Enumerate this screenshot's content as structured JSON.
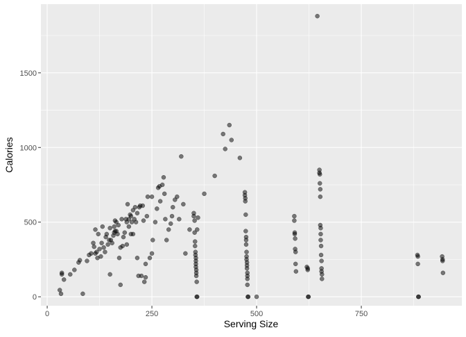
{
  "chart_data": {
    "type": "scatter",
    "xlabel": "Serving Size",
    "ylabel": "Calories",
    "xlim": [
      -15,
      990
    ],
    "ylim": [
      -60,
      1960
    ],
    "x_ticks": [
      0,
      250,
      500,
      750
    ],
    "x_tick_labels": [
      "0",
      "250",
      "500",
      "750"
    ],
    "x_minor": [
      125,
      375,
      625,
      875
    ],
    "y_ticks": [
      0,
      500,
      1000,
      1500
    ],
    "y_tick_labels": [
      "0",
      "500",
      "1000",
      "1500"
    ],
    "y_minor": [
      250,
      750,
      1250,
      1750
    ],
    "grid": true,
    "point_color": "#000000",
    "panel_color": "#ebebeb",
    "points": [
      [
        30,
        45
      ],
      [
        33,
        20
      ],
      [
        35,
        150
      ],
      [
        35,
        160
      ],
      [
        40,
        115
      ],
      [
        55,
        150
      ],
      [
        65,
        180
      ],
      [
        75,
        230
      ],
      [
        78,
        245
      ],
      [
        85,
        20
      ],
      [
        95,
        240
      ],
      [
        100,
        280
      ],
      [
        105,
        290
      ],
      [
        110,
        360
      ],
      [
        112,
        335
      ],
      [
        115,
        450
      ],
      [
        115,
        290
      ],
      [
        118,
        300
      ],
      [
        120,
        260
      ],
      [
        122,
        420
      ],
      [
        125,
        320
      ],
      [
        128,
        270
      ],
      [
        130,
        360
      ],
      [
        132,
        470
      ],
      [
        135,
        330
      ],
      [
        138,
        300
      ],
      [
        140,
        400
      ],
      [
        142,
        420
      ],
      [
        145,
        350
      ],
      [
        148,
        380
      ],
      [
        150,
        150
      ],
      [
        150,
        460
      ],
      [
        152,
        380
      ],
      [
        155,
        360
      ],
      [
        158,
        410
      ],
      [
        160,
        430
      ],
      [
        160,
        470
      ],
      [
        162,
        440
      ],
      [
        162,
        510
      ],
      [
        165,
        440
      ],
      [
        165,
        500
      ],
      [
        168,
        420
      ],
      [
        170,
        480
      ],
      [
        172,
        260
      ],
      [
        175,
        330
      ],
      [
        175,
        80
      ],
      [
        178,
        520
      ],
      [
        180,
        340
      ],
      [
        182,
        400
      ],
      [
        185,
        430
      ],
      [
        188,
        520
      ],
      [
        190,
        500
      ],
      [
        190,
        350
      ],
      [
        192,
        620
      ],
      [
        195,
        470
      ],
      [
        195,
        520
      ],
      [
        198,
        550
      ],
      [
        200,
        540
      ],
      [
        200,
        420
      ],
      [
        202,
        500
      ],
      [
        205,
        420
      ],
      [
        205,
        580
      ],
      [
        208,
        520
      ],
      [
        210,
        600
      ],
      [
        212,
        500
      ],
      [
        215,
        560
      ],
      [
        215,
        260
      ],
      [
        218,
        140
      ],
      [
        220,
        600
      ],
      [
        222,
        610
      ],
      [
        225,
        140
      ],
      [
        228,
        610
      ],
      [
        230,
        510
      ],
      [
        232,
        100
      ],
      [
        235,
        130
      ],
      [
        235,
        220
      ],
      [
        238,
        540
      ],
      [
        240,
        670
      ],
      [
        245,
        260
      ],
      [
        250,
        290
      ],
      [
        250,
        670
      ],
      [
        252,
        380
      ],
      [
        258,
        500
      ],
      [
        262,
        590
      ],
      [
        265,
        730
      ],
      [
        268,
        740
      ],
      [
        270,
        640
      ],
      [
        275,
        750
      ],
      [
        278,
        800
      ],
      [
        280,
        690
      ],
      [
        282,
        520
      ],
      [
        285,
        380
      ],
      [
        290,
        450
      ],
      [
        295,
        490
      ],
      [
        298,
        540
      ],
      [
        300,
        600
      ],
      [
        305,
        650
      ],
      [
        310,
        670
      ],
      [
        315,
        520
      ],
      [
        320,
        940
      ],
      [
        325,
        620
      ],
      [
        330,
        290
      ],
      [
        340,
        450
      ],
      [
        350,
        560
      ],
      [
        350,
        540
      ],
      [
        352,
        510
      ],
      [
        352,
        430
      ],
      [
        353,
        370
      ],
      [
        353,
        340
      ],
      [
        354,
        300
      ],
      [
        354,
        280
      ],
      [
        355,
        260
      ],
      [
        355,
        240
      ],
      [
        355,
        220
      ],
      [
        355,
        200
      ],
      [
        356,
        180
      ],
      [
        356,
        160
      ],
      [
        356,
        140
      ],
      [
        357,
        100
      ],
      [
        357,
        0
      ],
      [
        358,
        0
      ],
      [
        358,
        450
      ],
      [
        360,
        530
      ],
      [
        375,
        690
      ],
      [
        400,
        810
      ],
      [
        420,
        1090
      ],
      [
        425,
        990
      ],
      [
        435,
        1150
      ],
      [
        440,
        1050
      ],
      [
        460,
        930
      ],
      [
        472,
        700
      ],
      [
        472,
        680
      ],
      [
        473,
        660
      ],
      [
        473,
        640
      ],
      [
        474,
        550
      ],
      [
        474,
        440
      ],
      [
        475,
        400
      ],
      [
        475,
        380
      ],
      [
        475,
        350
      ],
      [
        476,
        300
      ],
      [
        476,
        270
      ],
      [
        476,
        250
      ],
      [
        477,
        230
      ],
      [
        477,
        210
      ],
      [
        477,
        190
      ],
      [
        478,
        160
      ],
      [
        478,
        140
      ],
      [
        478,
        120
      ],
      [
        478,
        80
      ],
      [
        479,
        0
      ],
      [
        480,
        0
      ],
      [
        500,
        0
      ],
      [
        590,
        540
      ],
      [
        590,
        510
      ],
      [
        591,
        430
      ],
      [
        591,
        420
      ],
      [
        592,
        390
      ],
      [
        592,
        320
      ],
      [
        593,
        300
      ],
      [
        593,
        220
      ],
      [
        594,
        170
      ],
      [
        620,
        200
      ],
      [
        622,
        190
      ],
      [
        622,
        180
      ],
      [
        623,
        0
      ],
      [
        624,
        0
      ],
      [
        645,
        1880
      ],
      [
        650,
        850
      ],
      [
        650,
        830
      ],
      [
        651,
        820
      ],
      [
        651,
        760
      ],
      [
        652,
        720
      ],
      [
        652,
        670
      ],
      [
        652,
        480
      ],
      [
        653,
        460
      ],
      [
        653,
        420
      ],
      [
        653,
        380
      ],
      [
        654,
        340
      ],
      [
        654,
        280
      ],
      [
        655,
        240
      ],
      [
        655,
        190
      ],
      [
        655,
        170
      ],
      [
        656,
        150
      ],
      [
        656,
        120
      ],
      [
        884,
        280
      ],
      [
        885,
        270
      ],
      [
        885,
        220
      ],
      [
        886,
        0
      ],
      [
        887,
        0
      ],
      [
        943,
        270
      ],
      [
        944,
        250
      ],
      [
        944,
        240
      ],
      [
        945,
        160
      ]
    ]
  }
}
